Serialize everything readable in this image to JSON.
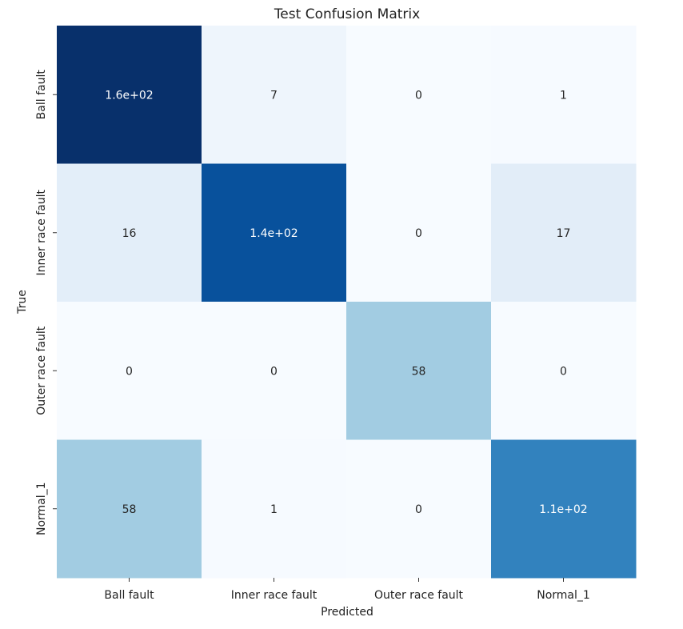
{
  "chart_data": {
    "type": "heatmap",
    "title": "Test Confusion Matrix",
    "xlabel": "Predicted",
    "ylabel": "True",
    "x_categories": [
      "Ball fault",
      "Inner race fault",
      "Outer race fault",
      "Normal_1"
    ],
    "y_categories": [
      "Ball fault",
      "Inner race fault",
      "Outer race fault",
      "Normal_1"
    ],
    "values": [
      [
        160,
        7,
        0,
        1
      ],
      [
        16,
        140,
        0,
        17
      ],
      [
        0,
        0,
        58,
        0
      ],
      [
        58,
        1,
        0,
        110
      ]
    ],
    "labels": [
      [
        "1.6e+02",
        "7",
        "0",
        "1"
      ],
      [
        "16",
        "1.4e+02",
        "0",
        "17"
      ],
      [
        "0",
        "0",
        "58",
        "0"
      ],
      [
        "58",
        "1",
        "0",
        "1.1e+02"
      ]
    ],
    "colormap": "Blues",
    "colorbar": false,
    "colors": {
      "low": "#f7fbff",
      "high": "#08306b"
    }
  }
}
